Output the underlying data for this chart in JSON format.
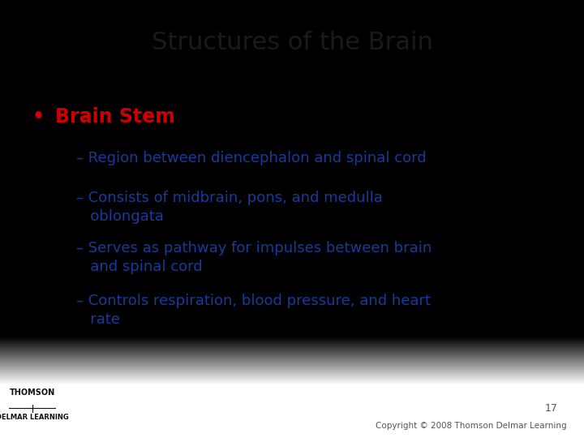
{
  "title": "Structures of the Brain",
  "title_color": "#1a1a1a",
  "title_fontsize": 22,
  "bullet_label": "Brain Stem",
  "bullet_color": "#cc0000",
  "bullet_fontsize": 17,
  "sub_items": [
    "– Region between diencephalon and spinal cord",
    "– Consists of midbrain, pons, and medulla\n   oblongata",
    "– Serves as pathway for impulses between brain\n   and spinal cord",
    "– Controls respiration, blood pressure, and heart\n   rate"
  ],
  "sub_color": "#1a3a9a",
  "sub_fontsize": 13,
  "bg_top": "#d8d8dc",
  "bg_bottom": "#c4c4cc",
  "page_number": "17",
  "copyright_text": "Copyright © 2008 Thomson Delmar Learning",
  "footer_color": "#555555",
  "footer_fontsize": 7.5,
  "thomson_text": "THOMSON",
  "delmar_text": "DELMAR LEARNING"
}
